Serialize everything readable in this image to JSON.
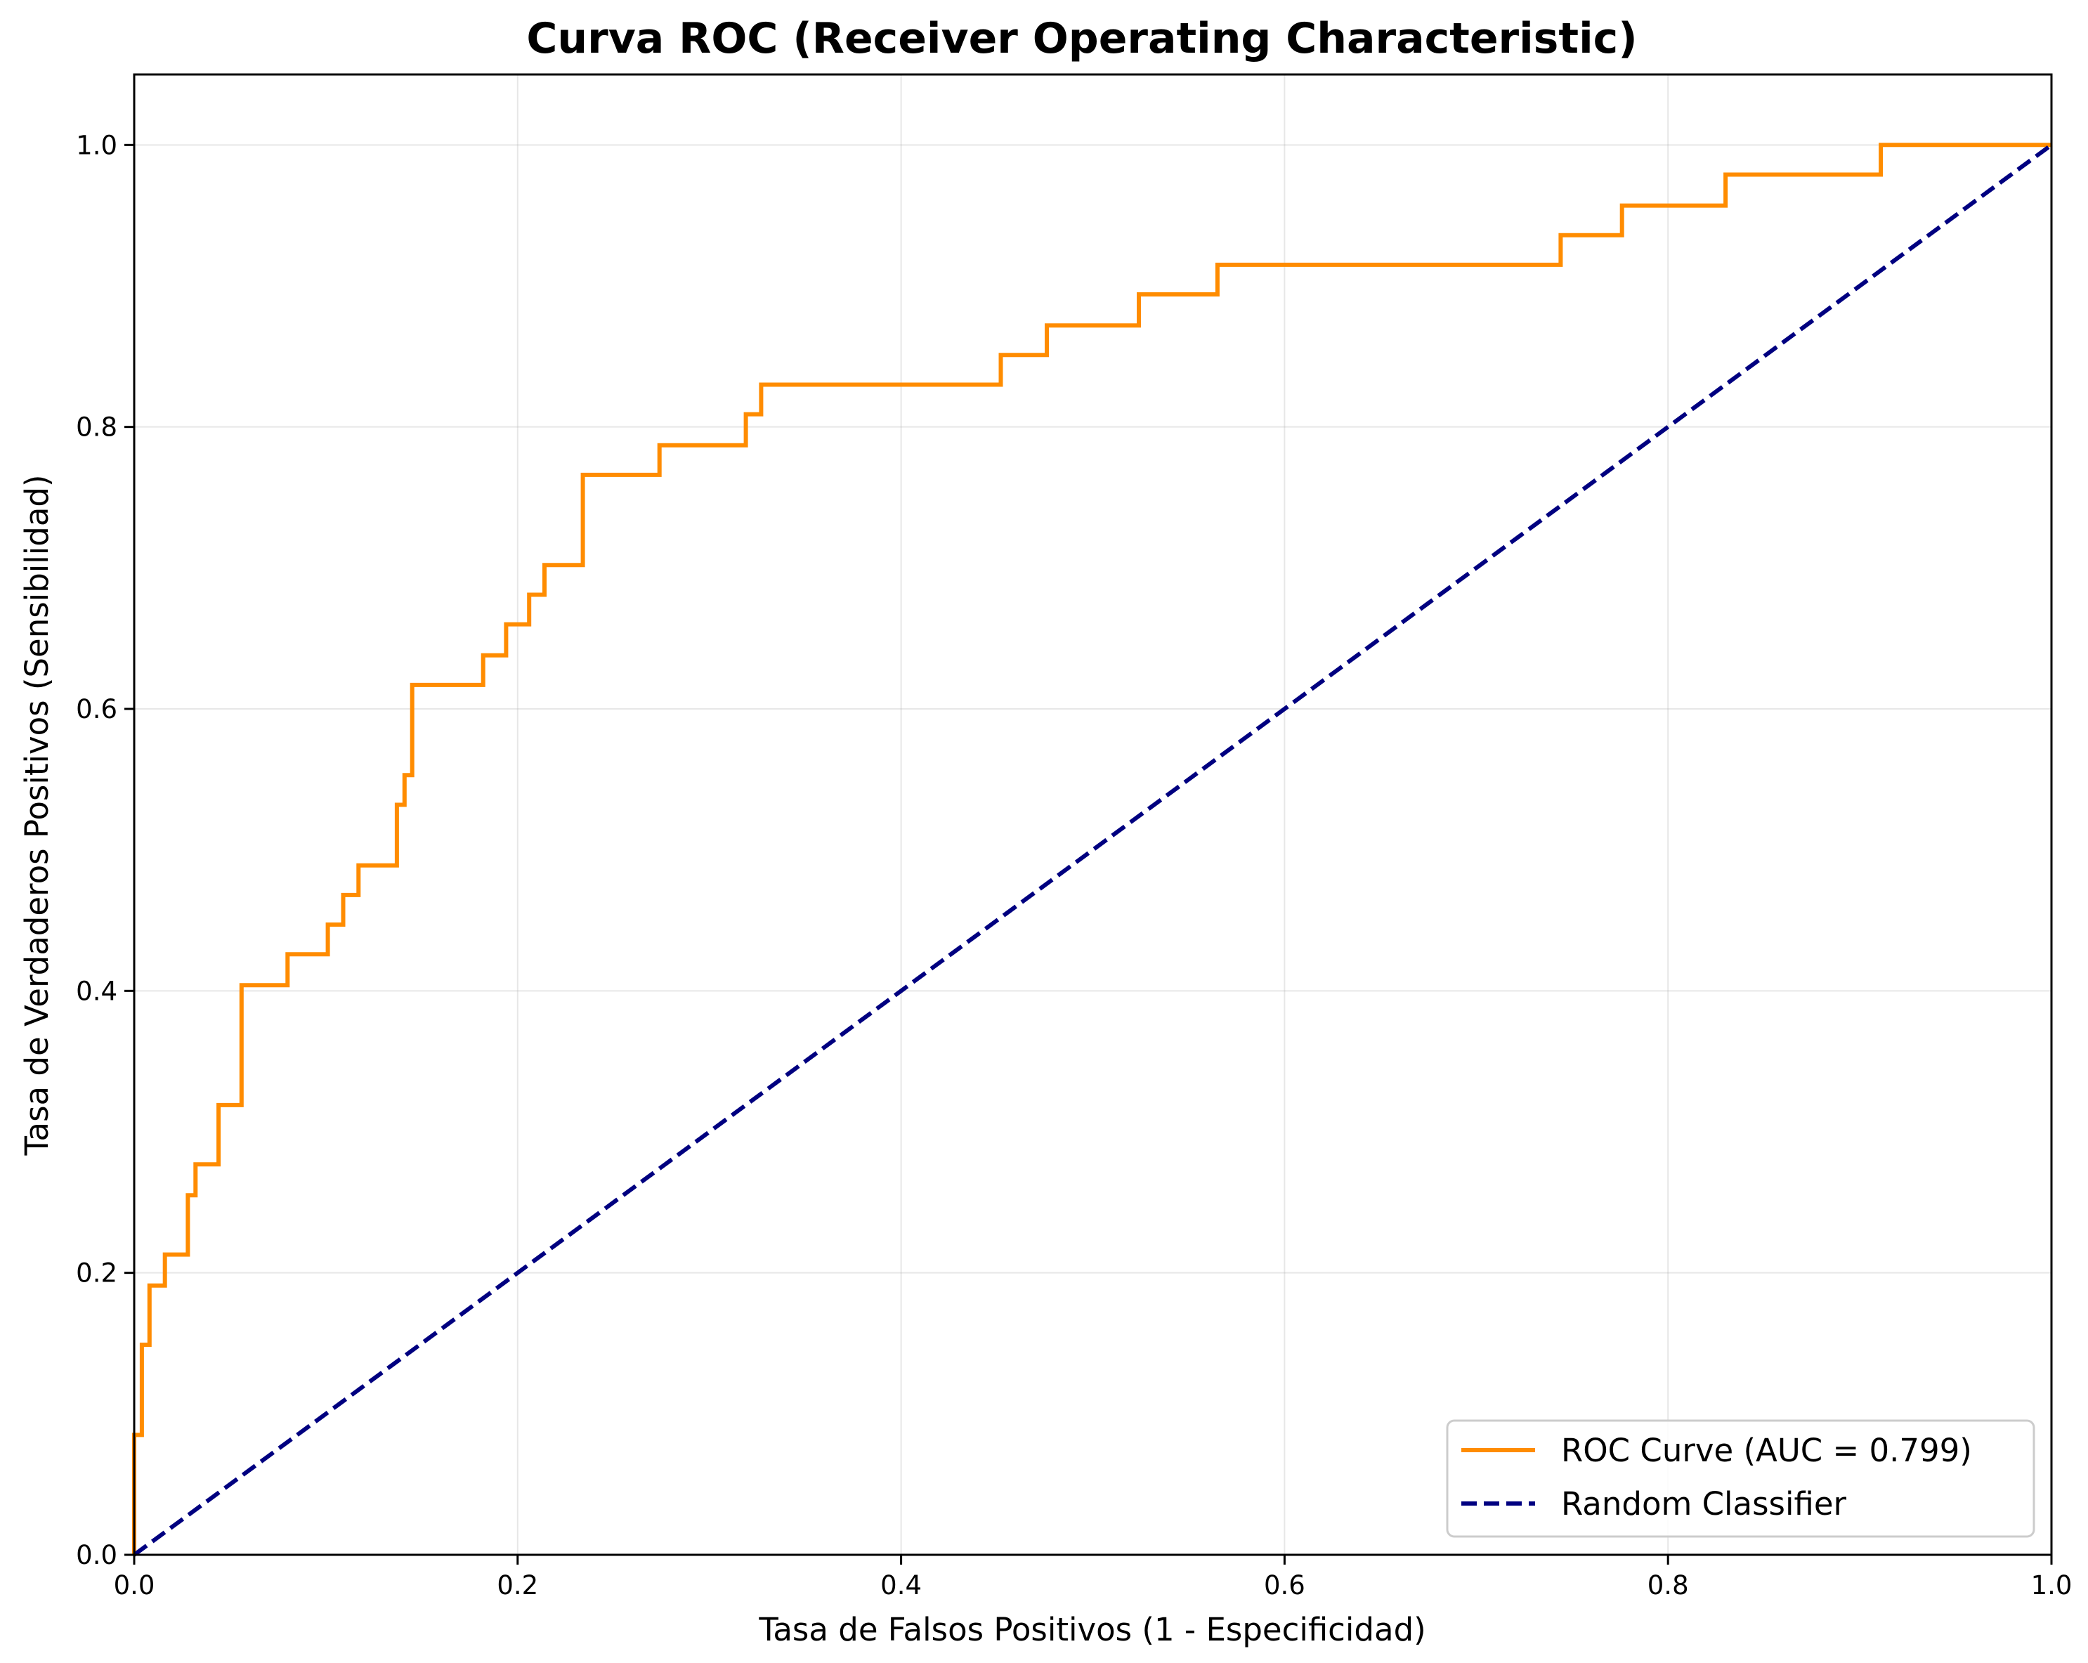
{
  "chart_data": {
    "type": "line",
    "title": "Curva ROC (Receiver Operating Characteristic)",
    "xlabel": "Tasa de Falsos Positivos (1 - Especificidad)",
    "ylabel": "Tasa de Verdaderos Positivos (Sensibilidad)",
    "xlim": [
      0,
      1
    ],
    "ylim": [
      0,
      1.05
    ],
    "xticks": [
      "0.0",
      "0.2",
      "0.4",
      "0.6",
      "0.8",
      "1.0"
    ],
    "yticks": [
      "0.0",
      "0.2",
      "0.4",
      "0.6",
      "0.8",
      "1.0"
    ],
    "grid": true,
    "legend_position": "bottom-right",
    "series": [
      {
        "name": "ROC Curve (AUC = 0.799)",
        "color": "#ff8c00",
        "style": "step",
        "points": [
          [
            0.0,
            0.0
          ],
          [
            0.0,
            0.085
          ],
          [
            0.004,
            0.085
          ],
          [
            0.004,
            0.149
          ],
          [
            0.008,
            0.149
          ],
          [
            0.008,
            0.191
          ],
          [
            0.016,
            0.191
          ],
          [
            0.016,
            0.213
          ],
          [
            0.028,
            0.213
          ],
          [
            0.028,
            0.255
          ],
          [
            0.032,
            0.255
          ],
          [
            0.032,
            0.277
          ],
          [
            0.044,
            0.277
          ],
          [
            0.044,
            0.319
          ],
          [
            0.056,
            0.319
          ],
          [
            0.056,
            0.404
          ],
          [
            0.08,
            0.404
          ],
          [
            0.08,
            0.426
          ],
          [
            0.101,
            0.426
          ],
          [
            0.101,
            0.447
          ],
          [
            0.109,
            0.447
          ],
          [
            0.109,
            0.468
          ],
          [
            0.117,
            0.468
          ],
          [
            0.117,
            0.489
          ],
          [
            0.137,
            0.489
          ],
          [
            0.137,
            0.532
          ],
          [
            0.141,
            0.532
          ],
          [
            0.141,
            0.553
          ],
          [
            0.145,
            0.553
          ],
          [
            0.145,
            0.617
          ],
          [
            0.182,
            0.617
          ],
          [
            0.182,
            0.638
          ],
          [
            0.194,
            0.638
          ],
          [
            0.194,
            0.66
          ],
          [
            0.206,
            0.66
          ],
          [
            0.206,
            0.681
          ],
          [
            0.214,
            0.681
          ],
          [
            0.214,
            0.702
          ],
          [
            0.234,
            0.702
          ],
          [
            0.234,
            0.766
          ],
          [
            0.274,
            0.766
          ],
          [
            0.274,
            0.787
          ],
          [
            0.319,
            0.787
          ],
          [
            0.319,
            0.809
          ],
          [
            0.327,
            0.809
          ],
          [
            0.327,
            0.83
          ],
          [
            0.452,
            0.83
          ],
          [
            0.452,
            0.851
          ],
          [
            0.476,
            0.851
          ],
          [
            0.476,
            0.872
          ],
          [
            0.524,
            0.872
          ],
          [
            0.524,
            0.894
          ],
          [
            0.565,
            0.894
          ],
          [
            0.565,
            0.915
          ],
          [
            0.744,
            0.915
          ],
          [
            0.744,
            0.936
          ],
          [
            0.776,
            0.936
          ],
          [
            0.776,
            0.957
          ],
          [
            0.83,
            0.957
          ],
          [
            0.83,
            0.979
          ],
          [
            0.911,
            0.979
          ],
          [
            0.911,
            1.0
          ],
          [
            1.0,
            1.0
          ]
        ]
      },
      {
        "name": "Random Classifier",
        "color": "#000080",
        "style": "dashed",
        "points": [
          [
            0,
            0
          ],
          [
            1,
            1
          ]
        ]
      }
    ]
  }
}
